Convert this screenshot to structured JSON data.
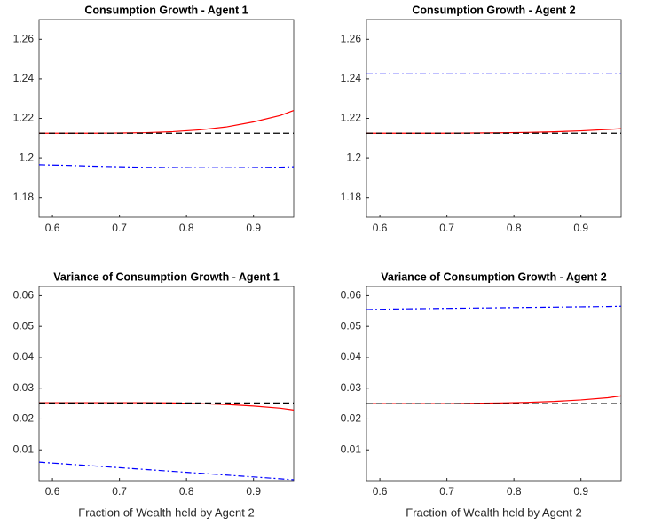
{
  "chart_data": [
    {
      "type": "line",
      "title": "Consumption Growth - Agent 1",
      "x": [
        0.58,
        0.62,
        0.66,
        0.7,
        0.74,
        0.78,
        0.82,
        0.86,
        0.9,
        0.94,
        0.96
      ],
      "series": [
        {
          "color": "#ff0000",
          "dash": "solid",
          "values": [
            1.2125,
            1.2125,
            1.2125,
            1.2126,
            1.2128,
            1.2133,
            1.2142,
            1.2157,
            1.2182,
            1.2215,
            1.224
          ]
        },
        {
          "color": "#000000",
          "dash": "dashed",
          "values": [
            1.2125,
            1.2125,
            1.2125,
            1.2125,
            1.2125,
            1.2125,
            1.2125,
            1.2125,
            1.2125,
            1.2125,
            1.2125
          ]
        },
        {
          "color": "#0000ff",
          "dash": "dashdot",
          "values": [
            1.1965,
            1.1962,
            1.1958,
            1.1955,
            1.1952,
            1.1951,
            1.195,
            1.195,
            1.1951,
            1.1953,
            1.1955
          ]
        }
      ],
      "xlim": [
        0.58,
        0.96
      ],
      "xticks": [
        0.6,
        0.7,
        0.8,
        0.9
      ],
      "ylim": [
        1.17,
        1.27
      ],
      "yticks": [
        1.18,
        1.2,
        1.22,
        1.24,
        1.26
      ]
    },
    {
      "type": "line",
      "title": "Consumption Growth - Agent 2",
      "x": [
        0.58,
        0.62,
        0.66,
        0.7,
        0.74,
        0.78,
        0.82,
        0.86,
        0.9,
        0.94,
        0.96
      ],
      "series": [
        {
          "color": "#ff0000",
          "dash": "solid",
          "values": [
            1.2125,
            1.2125,
            1.2125,
            1.2125,
            1.2126,
            1.2127,
            1.2129,
            1.2132,
            1.2137,
            1.2144,
            1.2148
          ]
        },
        {
          "color": "#000000",
          "dash": "dashed",
          "values": [
            1.2125,
            1.2125,
            1.2125,
            1.2125,
            1.2125,
            1.2125,
            1.2125,
            1.2125,
            1.2125,
            1.2125,
            1.2125
          ]
        },
        {
          "color": "#0000ff",
          "dash": "dashdot",
          "values": [
            1.2425,
            1.2425,
            1.2425,
            1.2425,
            1.2425,
            1.2425,
            1.2425,
            1.2425,
            1.2425,
            1.2425,
            1.2425
          ]
        }
      ],
      "xlim": [
        0.58,
        0.96
      ],
      "xticks": [
        0.6,
        0.7,
        0.8,
        0.9
      ],
      "ylim": [
        1.17,
        1.27
      ],
      "yticks": [
        1.18,
        1.2,
        1.22,
        1.24,
        1.26
      ]
    },
    {
      "type": "line",
      "title": "Variance of Consumption Growth - Agent 1",
      "x_label": "Fraction of Wealth held by Agent 2",
      "x": [
        0.58,
        0.62,
        0.66,
        0.7,
        0.74,
        0.78,
        0.82,
        0.86,
        0.9,
        0.94,
        0.96
      ],
      "series": [
        {
          "color": "#ff0000",
          "dash": "solid",
          "values": [
            0.0253,
            0.0253,
            0.0253,
            0.0253,
            0.0253,
            0.0252,
            0.025,
            0.0247,
            0.0242,
            0.0235,
            0.0229
          ]
        },
        {
          "color": "#000000",
          "dash": "dashed",
          "values": [
            0.0252,
            0.0252,
            0.0252,
            0.0252,
            0.0252,
            0.0252,
            0.0252,
            0.0252,
            0.0252,
            0.0252,
            0.0252
          ]
        },
        {
          "color": "#0000ff",
          "dash": "dashdot",
          "values": [
            0.006,
            0.0054,
            0.0048,
            0.0042,
            0.0036,
            0.003,
            0.0024,
            0.0018,
            0.0012,
            0.0006,
            0.0003
          ]
        }
      ],
      "xlim": [
        0.58,
        0.96
      ],
      "xticks": [
        0.6,
        0.7,
        0.8,
        0.9
      ],
      "ylim": [
        0,
        0.063
      ],
      "yticks": [
        0.01,
        0.02,
        0.03,
        0.04,
        0.05,
        0.06
      ]
    },
    {
      "type": "line",
      "title": "Variance of Consumption Growth - Agent 2",
      "x_label": "Fraction of Wealth held by Agent 2",
      "x": [
        0.58,
        0.62,
        0.66,
        0.7,
        0.74,
        0.78,
        0.82,
        0.86,
        0.9,
        0.94,
        0.96
      ],
      "series": [
        {
          "color": "#ff0000",
          "dash": "solid",
          "values": [
            0.025,
            0.025,
            0.025,
            0.025,
            0.0251,
            0.0252,
            0.0254,
            0.0257,
            0.0262,
            0.0269,
            0.0275
          ]
        },
        {
          "color": "#000000",
          "dash": "dashed",
          "values": [
            0.025,
            0.025,
            0.025,
            0.025,
            0.025,
            0.025,
            0.025,
            0.025,
            0.025,
            0.025,
            0.025
          ]
        },
        {
          "color": "#0000ff",
          "dash": "dashdot",
          "values": [
            0.0555,
            0.0557,
            0.0558,
            0.0559,
            0.056,
            0.0561,
            0.0562,
            0.0563,
            0.0564,
            0.0565,
            0.0566
          ]
        }
      ],
      "xlim": [
        0.58,
        0.96
      ],
      "xticks": [
        0.6,
        0.7,
        0.8,
        0.9
      ],
      "ylim": [
        0,
        0.063
      ],
      "yticks": [
        0.01,
        0.02,
        0.03,
        0.04,
        0.05,
        0.06
      ]
    }
  ]
}
